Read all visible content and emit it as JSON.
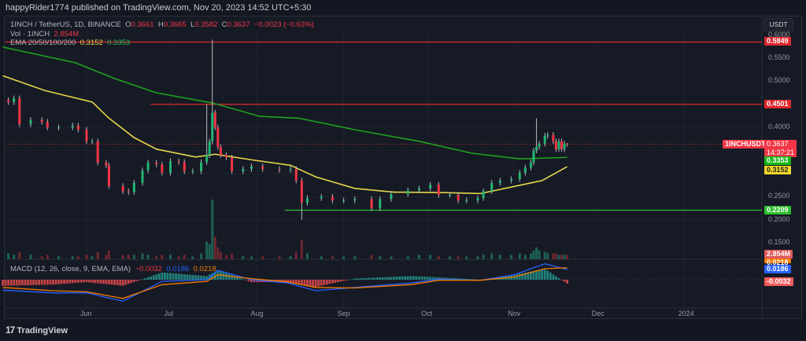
{
  "header": {
    "publisher_line": "happyRider1774 published on TradingView.com, Nov 20, 2023 14:52 UTC+5:30"
  },
  "legend": {
    "symbol": "1INCH / TetherUS, 1D, BINANCE",
    "o_label": "O",
    "o": "0.3661",
    "h_label": "H",
    "h": "0.3665",
    "l_label": "L",
    "l": "0.3582",
    "c_label": "C",
    "c": "0.3637",
    "change": "−0.0023 (−0.63%)",
    "vol_label": "Vol · 1INCH",
    "vol": "2.854M",
    "ema_label": "EMA 20/50/100/200",
    "ema50": "0.3152",
    "ema200": "0.3353",
    "macd_label": "MACD (12, 26, close, 9, EMA, EMA)",
    "macd_hist": "−0.0032",
    "macd": "0.0186",
    "macd_signal": "0.0218"
  },
  "currency_button": "USDT",
  "footer": {
    "brand": "TradingView"
  },
  "colors": {
    "up": "#22b573",
    "down": "#f23645",
    "ema50": "#e5d44a",
    "ema200": "#1fa21f",
    "resistance": "#e0282e",
    "support": "#2dbe2d",
    "macd": "#2962ff",
    "signal": "#f57c00"
  },
  "chart_data": {
    "type": "candlestick",
    "symbol": "1INCHUSDT",
    "price_ticks": [
      "0.6000",
      "0.5500",
      "0.5000",
      "0.4000",
      "0.2500",
      "0.2000",
      "0.1500"
    ],
    "time_ticks": [
      "Jun",
      "Jul",
      "Aug",
      "Sep",
      "Oct",
      "Nov",
      "Dec",
      "2024"
    ],
    "ylim": [
      0.1,
      0.6
    ],
    "candles": [
      {
        "d": "2023-05-04",
        "c": 0.455,
        "v": 4
      },
      {
        "d": "2023-05-06",
        "c": 0.463,
        "v": 3
      },
      {
        "d": "2023-05-08",
        "c": 0.407,
        "v": 5
      },
      {
        "d": "2023-05-12",
        "c": 0.416,
        "v": 3
      },
      {
        "d": "2023-05-16",
        "c": 0.412,
        "v": 2
      },
      {
        "d": "2023-05-18",
        "c": 0.4,
        "v": 3
      },
      {
        "d": "2023-05-22",
        "c": 0.4,
        "v": 2
      },
      {
        "d": "2023-05-27",
        "c": 0.404,
        "v": 2
      },
      {
        "d": "2023-05-29",
        "c": 0.395,
        "v": 2
      },
      {
        "d": "2023-06-01",
        "c": 0.37,
        "v": 3
      },
      {
        "d": "2023-06-03",
        "c": 0.37,
        "v": 2
      },
      {
        "d": "2023-06-05",
        "c": 0.324,
        "v": 5
      },
      {
        "d": "2023-06-08",
        "c": 0.318,
        "v": 3
      },
      {
        "d": "2023-06-09",
        "c": 0.273,
        "v": 6
      },
      {
        "d": "2023-06-14",
        "c": 0.262,
        "v": 3
      },
      {
        "d": "2023-06-16",
        "c": 0.26,
        "v": 3
      },
      {
        "d": "2023-06-18",
        "c": 0.28,
        "v": 3
      },
      {
        "d": "2023-06-21",
        "c": 0.307,
        "v": 4
      },
      {
        "d": "2023-06-23",
        "c": 0.324,
        "v": 3
      },
      {
        "d": "2023-06-26",
        "c": 0.32,
        "v": 2
      },
      {
        "d": "2023-06-28",
        "c": 0.302,
        "v": 3
      },
      {
        "d": "2023-07-01",
        "c": 0.327,
        "v": 3
      },
      {
        "d": "2023-07-04",
        "c": 0.325,
        "v": 2
      },
      {
        "d": "2023-07-06",
        "c": 0.305,
        "v": 3
      },
      {
        "d": "2023-07-09",
        "c": 0.305,
        "v": 2
      },
      {
        "d": "2023-07-12",
        "c": 0.325,
        "v": 4
      },
      {
        "d": "2023-07-14",
        "c": 0.34,
        "v": 12,
        "h": 0.45
      },
      {
        "d": "2023-07-15",
        "c": 0.37,
        "v": 10
      },
      {
        "d": "2023-07-16",
        "c": 0.432,
        "v": 40,
        "h": 0.59
      },
      {
        "d": "2023-07-17",
        "c": 0.4,
        "v": 15
      },
      {
        "d": "2023-07-18",
        "c": 0.358,
        "v": 8
      },
      {
        "d": "2023-07-19",
        "c": 0.34,
        "v": 5
      },
      {
        "d": "2023-07-21",
        "c": 0.335,
        "v": 3
      },
      {
        "d": "2023-07-23",
        "c": 0.305,
        "v": 4
      },
      {
        "d": "2023-07-27",
        "c": 0.31,
        "v": 2
      },
      {
        "d": "2023-07-30",
        "c": 0.316,
        "v": 2
      },
      {
        "d": "2023-08-03",
        "c": 0.31,
        "v": 2
      },
      {
        "d": "2023-08-09",
        "c": 0.308,
        "v": 2
      },
      {
        "d": "2023-08-13",
        "c": 0.31,
        "v": 2
      },
      {
        "d": "2023-08-15",
        "c": 0.285,
        "v": 5
      },
      {
        "d": "2023-08-17",
        "c": 0.237,
        "v": 13,
        "l": 0.2
      },
      {
        "d": "2023-08-19",
        "c": 0.247,
        "v": 4
      },
      {
        "d": "2023-08-24",
        "c": 0.25,
        "v": 2
      },
      {
        "d": "2023-08-28",
        "c": 0.242,
        "v": 2
      },
      {
        "d": "2023-09-01",
        "c": 0.242,
        "v": 2
      },
      {
        "d": "2023-09-05",
        "c": 0.245,
        "v": 2
      },
      {
        "d": "2023-09-11",
        "c": 0.225,
        "v": 3
      },
      {
        "d": "2023-09-14",
        "c": 0.245,
        "v": 2
      },
      {
        "d": "2023-09-18",
        "c": 0.256,
        "v": 2
      },
      {
        "d": "2023-09-24",
        "c": 0.264,
        "v": 2
      },
      {
        "d": "2023-09-28",
        "c": 0.268,
        "v": 3
      },
      {
        "d": "2023-10-02",
        "c": 0.276,
        "v": 3
      },
      {
        "d": "2023-10-05",
        "c": 0.254,
        "v": 2
      },
      {
        "d": "2023-10-09",
        "c": 0.254,
        "v": 2
      },
      {
        "d": "2023-10-12",
        "c": 0.242,
        "v": 2
      },
      {
        "d": "2023-10-15",
        "c": 0.242,
        "v": 2
      },
      {
        "d": "2023-10-19",
        "c": 0.247,
        "v": 2
      },
      {
        "d": "2023-10-21",
        "c": 0.262,
        "v": 3
      },
      {
        "d": "2023-10-24",
        "c": 0.28,
        "v": 4
      },
      {
        "d": "2023-10-27",
        "c": 0.285,
        "v": 3
      },
      {
        "d": "2023-10-31",
        "c": 0.288,
        "v": 3
      },
      {
        "d": "2023-11-03",
        "c": 0.302,
        "v": 4
      },
      {
        "d": "2023-11-05",
        "c": 0.313,
        "v": 3
      },
      {
        "d": "2023-11-07",
        "c": 0.324,
        "v": 4
      },
      {
        "d": "2023-11-08",
        "c": 0.35,
        "v": 6
      },
      {
        "d": "2023-11-09",
        "c": 0.358,
        "v": 8,
        "h": 0.42
      },
      {
        "d": "2023-11-10",
        "c": 0.365,
        "v": 6
      },
      {
        "d": "2023-11-12",
        "c": 0.382,
        "v": 5
      },
      {
        "d": "2023-11-13",
        "c": 0.384,
        "v": 4
      },
      {
        "d": "2023-11-15",
        "c": 0.37,
        "v": 4
      },
      {
        "d": "2023-11-16",
        "c": 0.353,
        "v": 4
      },
      {
        "d": "2023-11-17",
        "c": 0.37,
        "v": 3
      },
      {
        "d": "2023-11-18",
        "c": 0.353,
        "v": 3
      },
      {
        "d": "2023-11-19",
        "c": 0.365,
        "v": 3
      },
      {
        "d": "2023-11-20",
        "c": 0.3637,
        "v": 2.854,
        "h": 0.3665,
        "l": 0.3582
      }
    ],
    "ema50": [
      [
        "2023-05-02",
        0.512
      ],
      [
        "2023-05-17",
        0.48
      ],
      [
        "2023-06-03",
        0.455
      ],
      [
        "2023-06-09",
        0.42
      ],
      [
        "2023-06-18",
        0.378
      ],
      [
        "2023-06-26",
        0.353
      ],
      [
        "2023-07-10",
        0.336
      ],
      [
        "2023-07-17",
        0.342
      ],
      [
        "2023-07-30",
        0.33
      ],
      [
        "2023-08-13",
        0.318
      ],
      [
        "2023-08-22",
        0.293
      ],
      [
        "2023-09-05",
        0.268
      ],
      [
        "2023-09-19",
        0.26
      ],
      [
        "2023-10-06",
        0.259
      ],
      [
        "2023-10-20",
        0.257
      ],
      [
        "2023-10-31",
        0.271
      ],
      [
        "2023-11-11",
        0.285
      ],
      [
        "2023-11-20",
        0.3152
      ]
    ],
    "ema200": [
      [
        "2023-05-02",
        0.574
      ],
      [
        "2023-05-28",
        0.54
      ],
      [
        "2023-06-11",
        0.506
      ],
      [
        "2023-06-26",
        0.475
      ],
      [
        "2023-07-16",
        0.453
      ],
      [
        "2023-08-02",
        0.424
      ],
      [
        "2023-08-16",
        0.42
      ],
      [
        "2023-09-05",
        0.395
      ],
      [
        "2023-09-28",
        0.37
      ],
      [
        "2023-10-17",
        0.344
      ],
      [
        "2023-11-03",
        0.332
      ],
      [
        "2023-11-20",
        0.3353
      ]
    ],
    "levels": [
      {
        "price": 0.5849,
        "label": "0.5849",
        "from": "2023-05-02",
        "kind": "resistance"
      },
      {
        "price": 0.4501,
        "label": "0.4501",
        "from": "2023-06-24",
        "kind": "resistance"
      },
      {
        "price": 0.2209,
        "label": "0.2209",
        "from": "2023-08-11",
        "kind": "support"
      }
    ],
    "last_price": {
      "label": "1INCHUSDT",
      "price": "0.3637",
      "countdown": "14:37:21"
    },
    "ema_labels": {
      "ema200": "0.3353",
      "ema50": "0.3152"
    },
    "volume_label": "2.854M",
    "macd_series": [
      [
        "2023-05-02",
        -0.019,
        -0.014
      ],
      [
        "2023-05-20",
        -0.024,
        -0.02
      ],
      [
        "2023-06-01",
        -0.024,
        -0.022
      ],
      [
        "2023-06-14",
        -0.039,
        -0.034
      ],
      [
        "2023-06-28",
        -0.003,
        -0.009
      ],
      [
        "2023-07-14",
        0.0,
        -0.003
      ],
      [
        "2023-07-18",
        0.017,
        0.009
      ],
      [
        "2023-07-30",
        0.0,
        0.002
      ],
      [
        "2023-08-12",
        -0.006,
        -0.004
      ],
      [
        "2023-08-22",
        -0.02,
        -0.014
      ],
      [
        "2023-09-05",
        -0.014,
        -0.015
      ],
      [
        "2023-09-25",
        -0.006,
        -0.009
      ],
      [
        "2023-10-05",
        0.001,
        -0.001
      ],
      [
        "2023-10-20",
        -0.001,
        -0.001
      ],
      [
        "2023-11-01",
        0.009,
        0.005
      ],
      [
        "2023-11-12",
        0.029,
        0.02
      ],
      [
        "2023-11-20",
        0.0186,
        0.0218
      ]
    ],
    "macd_labels": {
      "signal": "0.0218",
      "macd": "0.0186",
      "hist": "-0.0032"
    }
  }
}
